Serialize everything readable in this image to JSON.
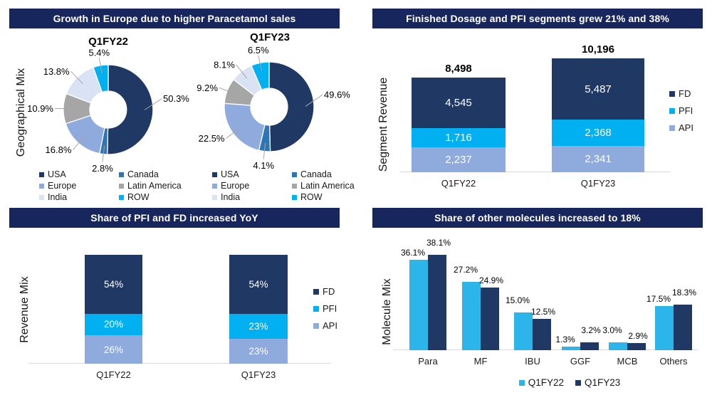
{
  "page": {
    "background": "#FFFFFF"
  },
  "colors": {
    "panel_title_bg": "#17265C",
    "navy": "#1F3864",
    "cyan": "#00B0F0",
    "grouped_cyan": "#2BB5EA",
    "periwinkle": "#8FAADC",
    "gray": "#A6A6A6",
    "pale_blue": "#DAE3F3",
    "medium_blue": "#2E75B6",
    "axis_line": "#D9D9D9",
    "leader_line": "#A6A6A6",
    "label_on_bar": "#FFFFFF",
    "label_text": "#000000"
  },
  "chart_data": [
    {
      "type": "pie",
      "subtype": "donut-pair",
      "panel": "top-left",
      "title": "Growth in Europe due to higher Paracetamol sales",
      "ylabel": "Geographical Mix",
      "legend_position": "bottom",
      "categories": [
        "USA",
        "Canada",
        "Europe",
        "Latin America",
        "India",
        "ROW"
      ],
      "slice_colors": [
        "#1F3864",
        "#2E75B6",
        "#8FAADC",
        "#A6A6A6",
        "#DAE3F3",
        "#00B0F0"
      ],
      "donuts": [
        {
          "label": "Q1FY22",
          "values": [
            50.3,
            2.8,
            16.8,
            10.9,
            13.8,
            5.4
          ],
          "value_labels": [
            "50.3%",
            "2.8%",
            "16.8%",
            "10.9%",
            "13.8%",
            "5.4%"
          ]
        },
        {
          "label": "Q1FY23",
          "values": [
            49.6,
            4.1,
            22.5,
            9.2,
            8.1,
            6.5
          ],
          "value_labels": [
            "49.6%",
            "4.1%",
            "22.5%",
            "9.2%",
            "8.1%",
            "6.5%"
          ]
        }
      ]
    },
    {
      "type": "bar",
      "subtype": "stacked",
      "panel": "top-right",
      "title": "Finished Dosage and PFI segments grew 21% and 38%",
      "ylabel": "Segment Revenue",
      "legend_position": "right",
      "categories": [
        "Q1FY22",
        "Q1FY23"
      ],
      "totals": [
        "8,498",
        "10,196"
      ],
      "series": [
        {
          "name": "FD",
          "color": "#1F3864",
          "values": [
            4545,
            5487
          ],
          "value_labels": [
            "4,545",
            "5,487"
          ]
        },
        {
          "name": "PFI",
          "color": "#00B0F0",
          "values": [
            1716,
            2368
          ],
          "value_labels": [
            "1,716",
            "2,368"
          ]
        },
        {
          "name": "API",
          "color": "#8FAADC",
          "values": [
            2237,
            2341
          ],
          "value_labels": [
            "2,237",
            "2,341"
          ]
        }
      ]
    },
    {
      "type": "bar",
      "subtype": "stacked-100",
      "panel": "bottom-left",
      "title": "Share of PFI and FD increased YoY",
      "ylabel": "Revenue Mix",
      "legend_position": "right",
      "categories": [
        "Q1FY22",
        "Q1FY23"
      ],
      "series": [
        {
          "name": "FD",
          "color": "#1F3864",
          "values": [
            54,
            54
          ],
          "value_labels": [
            "54%",
            "54%"
          ]
        },
        {
          "name": "PFI",
          "color": "#00B0F0",
          "values": [
            20,
            23
          ],
          "value_labels": [
            "20%",
            "23%"
          ]
        },
        {
          "name": "API",
          "color": "#8FAADC",
          "values": [
            26,
            23
          ],
          "value_labels": [
            "26%",
            "23%"
          ]
        }
      ]
    },
    {
      "type": "bar",
      "subtype": "grouped",
      "panel": "bottom-right",
      "title": "Share of other molecules increased to 18%",
      "ylabel": "Molecule Mix",
      "legend_position": "bottom",
      "categories": [
        "Para",
        "MF",
        "IBU",
        "GGF",
        "MCB",
        "Others"
      ],
      "series": [
        {
          "name": "Q1FY22",
          "color": "#2BB5EA",
          "values": [
            36.1,
            27.2,
            15.0,
            1.3,
            3.0,
            17.5
          ],
          "value_labels": [
            "36.1%",
            "27.2%",
            "15.0%",
            "1.3%",
            "3.0%",
            "17.5%"
          ]
        },
        {
          "name": "Q1FY23",
          "color": "#1F3864",
          "values": [
            38.1,
            24.9,
            12.5,
            3.2,
            2.9,
            18.3
          ],
          "value_labels": [
            "38.1%",
            "24.9%",
            "12.5%",
            "3.2%",
            "2.9%",
            "18.3%"
          ]
        }
      ]
    }
  ]
}
